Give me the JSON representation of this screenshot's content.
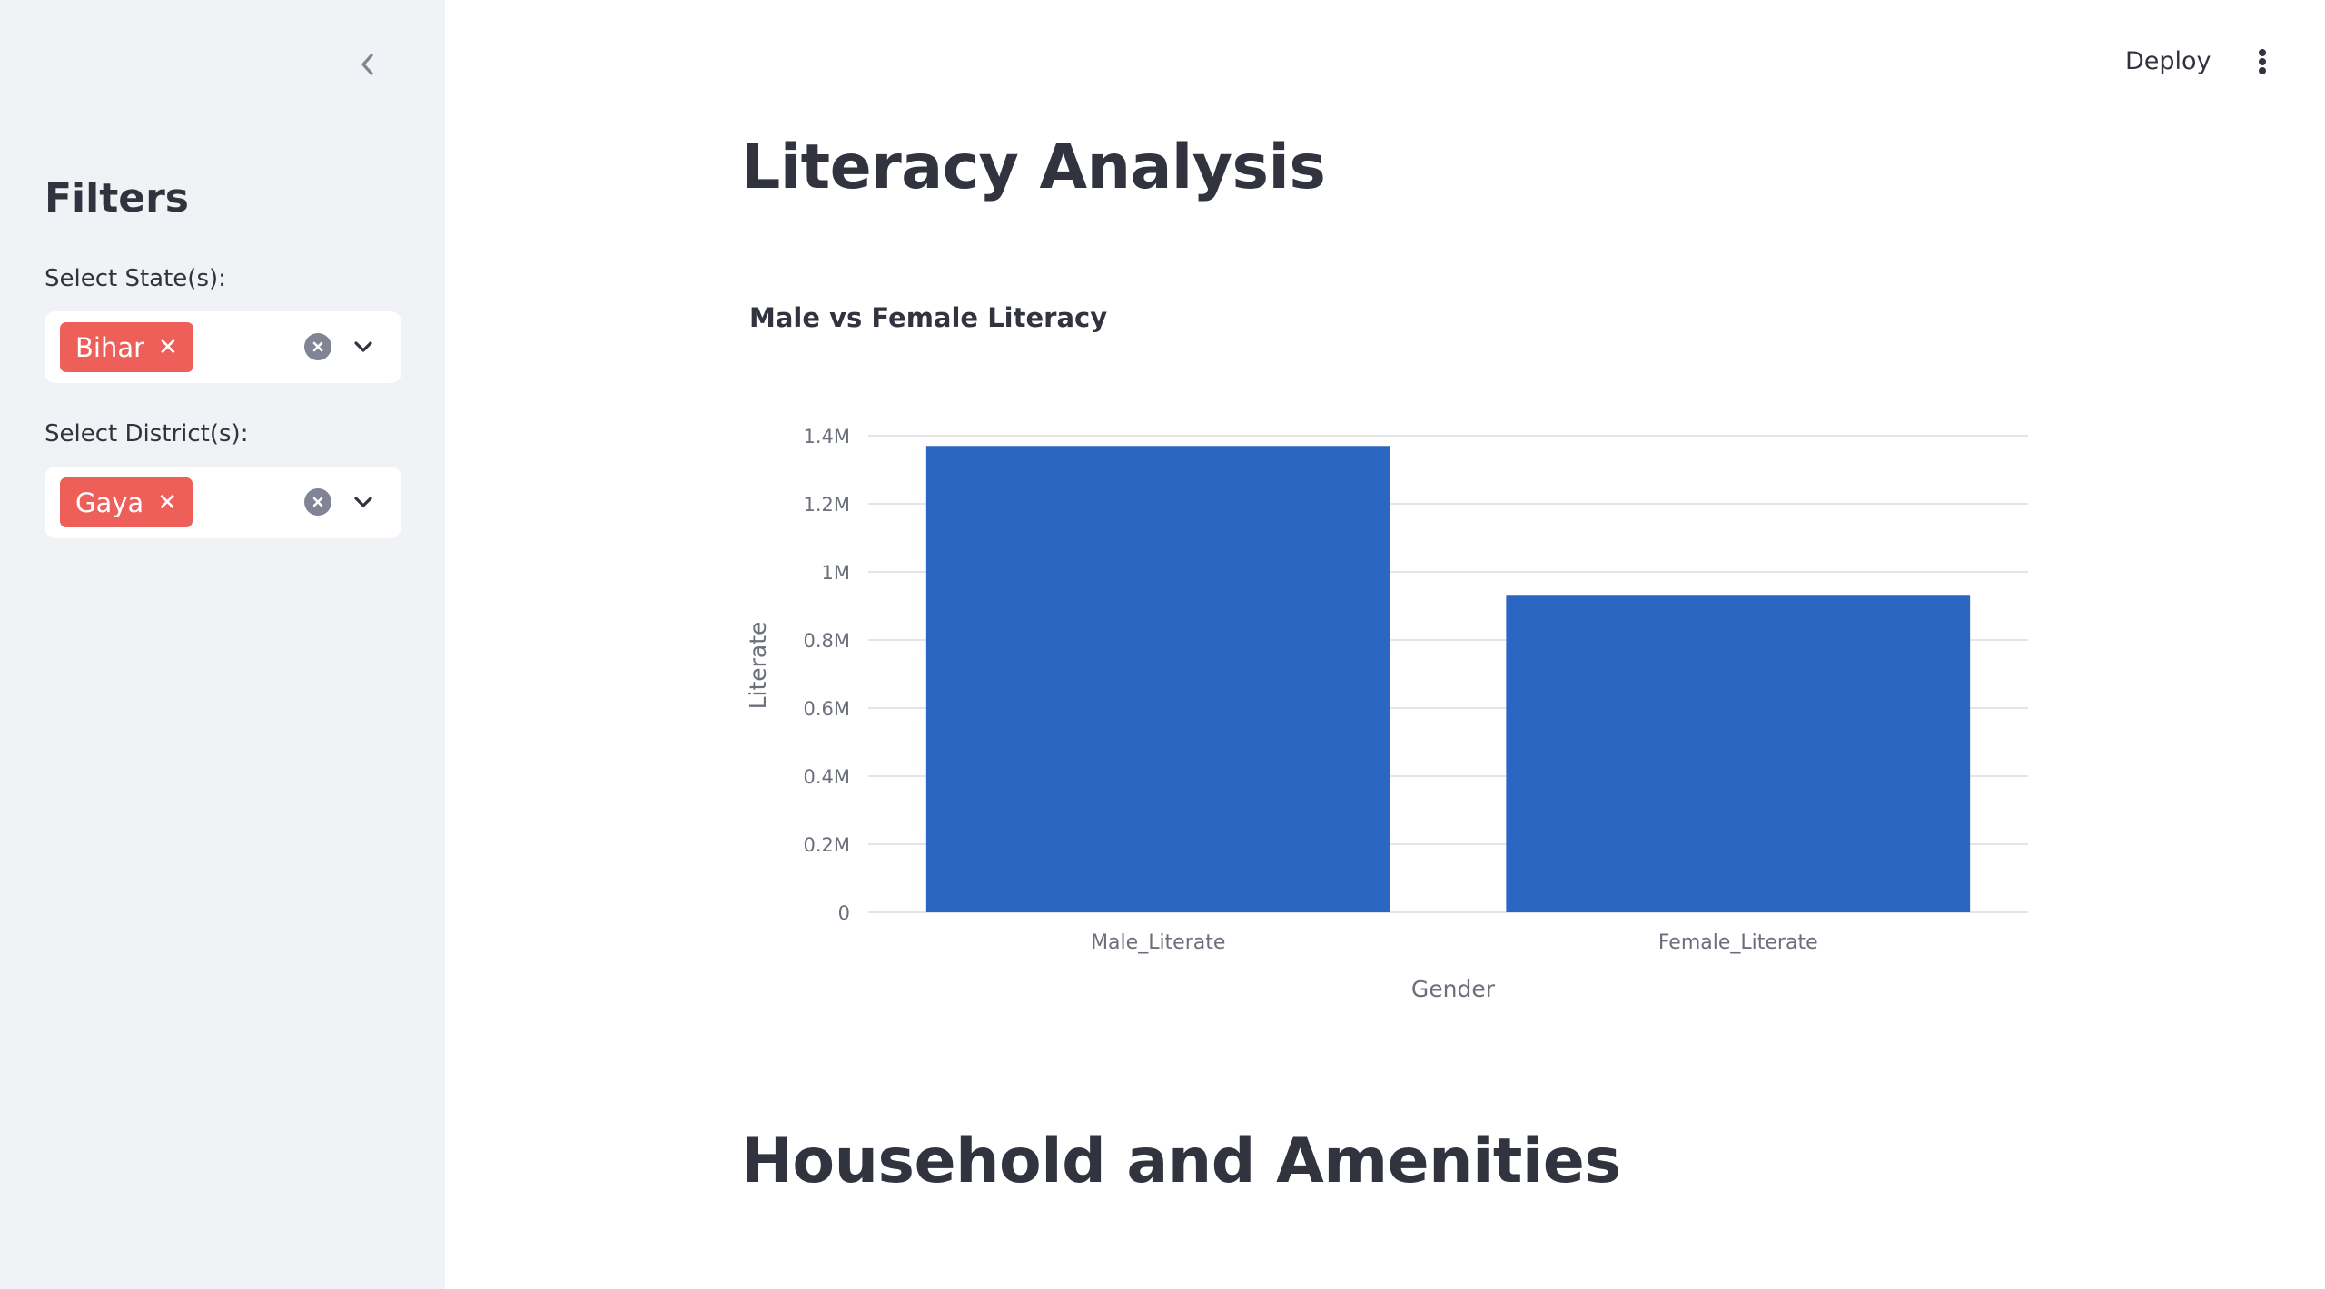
{
  "sidebar": {
    "title": "Filters",
    "state_label": "Select State(s):",
    "state_tags": [
      "Bihar"
    ],
    "district_label": "Select District(s):",
    "district_tags": [
      "Gaya"
    ]
  },
  "header": {
    "deploy_label": "Deploy"
  },
  "main": {
    "title": "Literacy Analysis",
    "section2_title": "Household and Amenities"
  },
  "chart_data": {
    "type": "bar",
    "title": "Male vs Female Literacy",
    "categories": [
      "Male_Literate",
      "Female_Literate"
    ],
    "values": [
      1370000,
      930000
    ],
    "xlabel": "Gender",
    "ylabel": "Literate",
    "ylim": [
      0,
      1400000
    ],
    "yticks": [
      0,
      200000,
      400000,
      600000,
      800000,
      1000000,
      1200000,
      1400000
    ],
    "ytick_labels": [
      "0",
      "0.2M",
      "0.4M",
      "0.6M",
      "0.8M",
      "1M",
      "1.2M",
      "1.4M"
    ],
    "grid": true,
    "color": "#2b67c2"
  }
}
